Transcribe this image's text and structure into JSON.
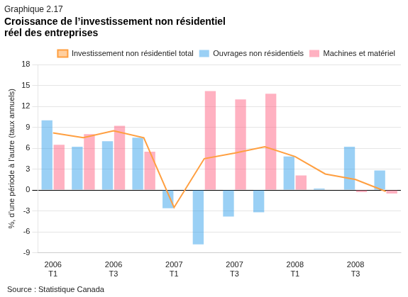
{
  "chart_data": {
    "type": "bar",
    "title": "Graphique 2.17",
    "subtitle": "Croissance de l’investissement non résidentiel\nréel des entreprises",
    "ylabel": "%, d’une période à l’autre (taux annuels)",
    "source": "Source : Statistique Canada",
    "categories": [
      "2006\nT1",
      null,
      "2006\nT3",
      null,
      "2007\nT1",
      null,
      "2007\nT3",
      null,
      "2008\nT1",
      null,
      "2008\nT3",
      null
    ],
    "series": [
      {
        "name": "Ouvrages non résidentiels",
        "type": "bar",
        "values": [
          10.0,
          6.2,
          7.0,
          7.5,
          -2.6,
          -7.8,
          -3.8,
          -3.2,
          4.8,
          0.2,
          6.2,
          2.8
        ]
      },
      {
        "name": "Machines et matériel",
        "type": "bar",
        "values": [
          6.5,
          8.0,
          9.2,
          5.5,
          0.0,
          14.2,
          13.0,
          13.8,
          2.1,
          0.0,
          -0.3,
          -0.5
        ]
      },
      {
        "name": "Investissement non résidentiel total",
        "type": "line",
        "values": [
          8.2,
          7.5,
          8.5,
          7.5,
          -2.5,
          4.5,
          5.3,
          6.2,
          4.8,
          2.3,
          1.5,
          -0.2
        ]
      }
    ],
    "ylim": [
      -9,
      18
    ],
    "yticks": [
      -9,
      -6,
      -3,
      0,
      3,
      6,
      9,
      12,
      15,
      18
    ],
    "grid": true,
    "legend": "upper right"
  }
}
